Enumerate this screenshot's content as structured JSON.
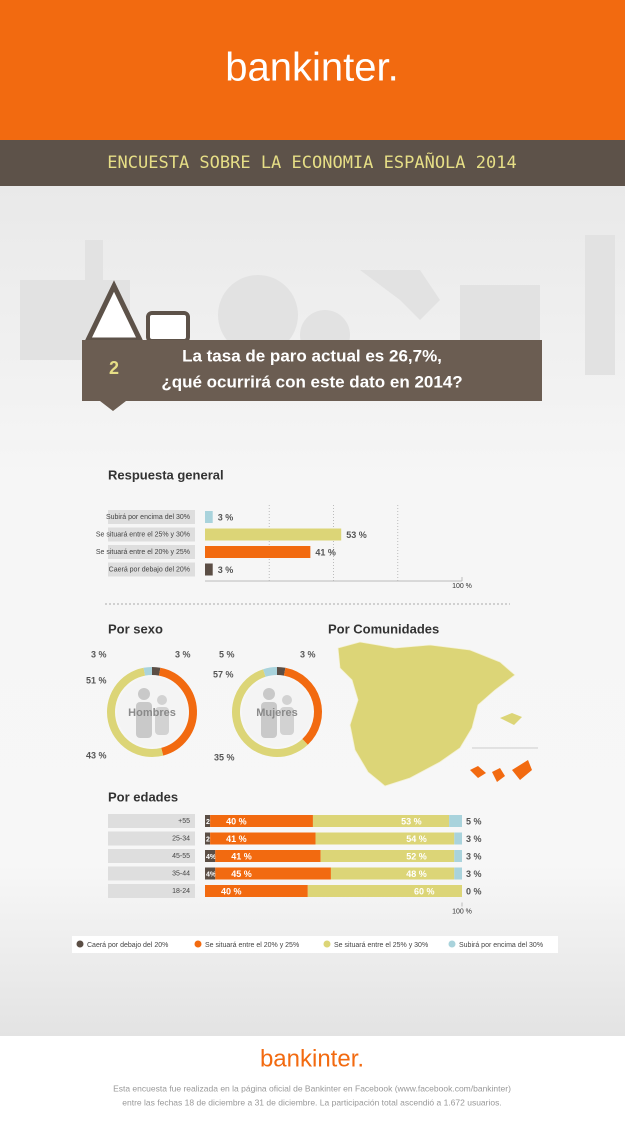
{
  "header": {
    "brand": "bankinter.",
    "title": "ENCUESTA SOBRE LA ECONOMIA ESPAÑOLA 2014"
  },
  "question": {
    "number": "2",
    "lines": [
      "La tasa de paro actual es 26,7%,",
      "¿qué ocurrirá con este dato en 2014?"
    ]
  },
  "chart_data": [
    {
      "type": "bar",
      "title": "Respuesta general",
      "categories": [
        "Subirá por encima del 30%",
        "Se situará entre el 25% y 30%",
        "Se situará entre el 20% y 25%",
        "Caerá por debajo del 20%"
      ],
      "values": [
        3,
        53,
        41,
        3
      ],
      "value_labels": [
        "3 %",
        "53 %",
        "41 %",
        "3 %"
      ],
      "colors": [
        "#a9d3dc",
        "#dcd577",
        "#f26a10",
        "#5b4e45"
      ],
      "xlim": [
        0,
        100
      ],
      "xticks": [
        {
          "value": 100,
          "label": "100 %"
        }
      ],
      "gridlines": [
        25,
        50,
        75
      ]
    },
    {
      "type": "donut",
      "title": "Por sexo",
      "label": "Hombres",
      "values": [
        3,
        43,
        51,
        3
      ],
      "value_labels": [
        "3 %",
        "43 %",
        "51 %",
        "3 %"
      ],
      "colors": [
        "#5b4e45",
        "#f26a10",
        "#dcd577",
        "#a9d3dc"
      ]
    },
    {
      "type": "donut",
      "label": "Mujeres",
      "values": [
        3,
        35,
        57,
        5
      ],
      "value_labels": [
        "3 %",
        "35 %",
        "57 %",
        "5 %"
      ],
      "colors": [
        "#5b4e45",
        "#f26a10",
        "#dcd577",
        "#a9d3dc"
      ]
    },
    {
      "type": "stacked_bar",
      "title": "Por edades",
      "categories": [
        "+55",
        "25-34",
        "45-55",
        "35-44",
        "18-24"
      ],
      "series": [
        {
          "name": "Caerá por debajo del 20%",
          "color": "#5b4e45",
          "values": [
            2,
            2,
            4,
            4,
            0
          ],
          "value_labels": [
            "2%",
            "2%",
            "4%",
            "4%",
            null
          ]
        },
        {
          "name": "Se situará entre el 20% y 25%",
          "color": "#f26a10",
          "values": [
            40,
            41,
            41,
            45,
            40
          ],
          "value_labels": [
            "40 %",
            "41 %",
            "41 %",
            "45 %",
            "40 %"
          ]
        },
        {
          "name": "Se situará entre el 25% y 30%",
          "color": "#dcd577",
          "values": [
            53,
            54,
            52,
            48,
            60
          ],
          "value_labels": [
            "53 %",
            "54 %",
            "52 %",
            "48 %",
            "60 %"
          ]
        },
        {
          "name": "Subirá por encima del 30%",
          "color": "#a9d3dc",
          "values": [
            5,
            3,
            3,
            3,
            0
          ],
          "value_labels": [
            "5 %",
            "3 %",
            "3 %",
            "3 %",
            "0 %"
          ]
        }
      ],
      "xlim": [
        0,
        100
      ],
      "xticks": [
        {
          "value": 100,
          "label": "100 %"
        }
      ]
    }
  ],
  "map": {
    "title": "Por Comunidades"
  },
  "footer": {
    "brand": "bankinter.",
    "lines": [
      "Esta encuesta fue realizada en la página oficial de Bankinter en Facebook (www.facebook.com/bankinter)",
      "entre las fechas 18 de diciembre a 31 de diciembre. La participación total ascendió a 1.672 usuarios."
    ]
  }
}
